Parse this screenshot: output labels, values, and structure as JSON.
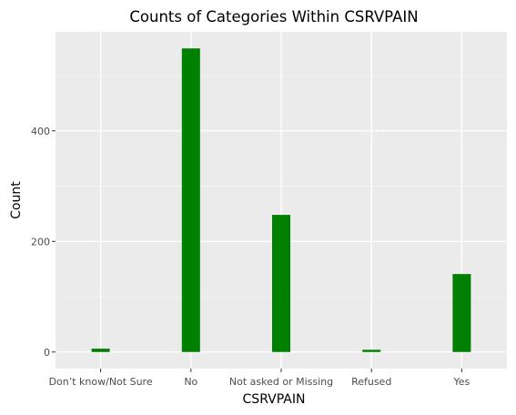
{
  "chart_data": {
    "type": "bar",
    "title": "Counts of Categories Within CSRVPAIN",
    "xlabel": "CSRVPAIN",
    "ylabel": "Count",
    "categories": [
      "Don’t know/Not Sure",
      "No",
      "Not asked or Missing",
      "Refused",
      "Yes"
    ],
    "values": [
      6,
      549,
      248,
      4,
      141
    ],
    "ylim": [
      -30,
      579
    ],
    "yticks": [
      0,
      200,
      400
    ],
    "grid": true,
    "legend": "none",
    "colors": {
      "bar": "#008000",
      "panel": "#ebebeb",
      "grid_major": "#ffffff",
      "grid_minor": "#f5f5f5"
    }
  }
}
